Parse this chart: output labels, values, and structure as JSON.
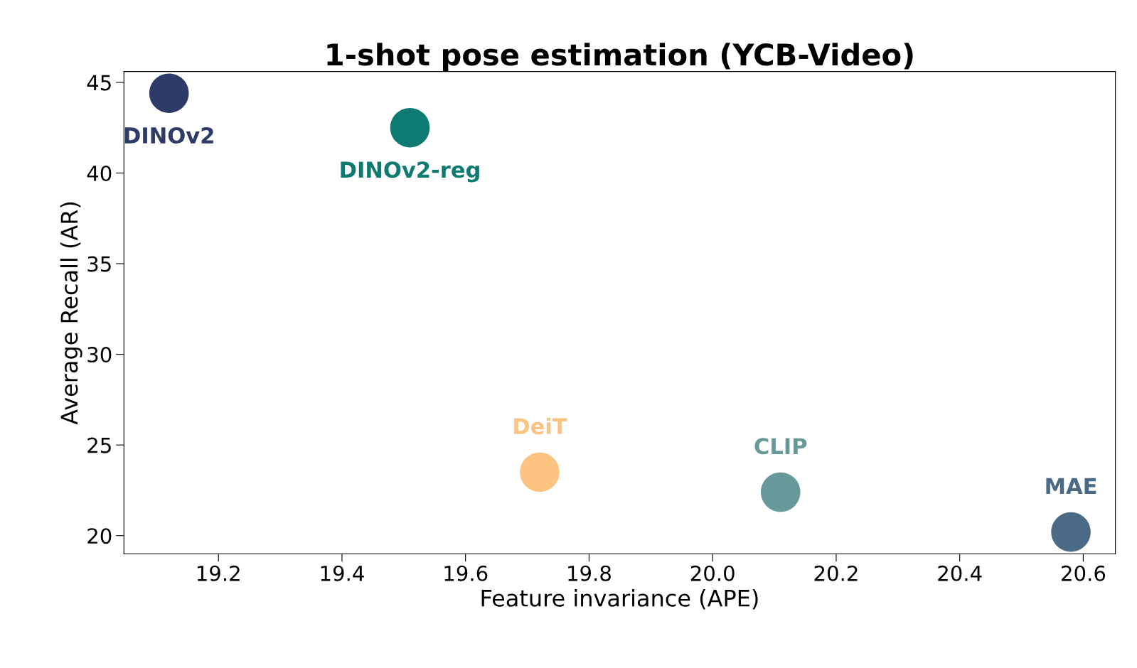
{
  "chart_data": {
    "type": "scatter",
    "title": "1-shot pose estimation (YCB-Video)",
    "xlabel": "Feature invariance (APE)",
    "ylabel": "Average Recall (AR)",
    "xlim": [
      19.047,
      20.652
    ],
    "ylim": [
      19.0,
      45.6
    ],
    "xticks": [
      19.2,
      19.4,
      19.6,
      19.8,
      {
        "value": 20.0,
        "label": "20.0"
      },
      20.2,
      20.4,
      20.6
    ],
    "yticks": [
      20,
      25,
      30,
      35,
      40,
      45
    ],
    "grid": false,
    "legend": false,
    "marker": "circle",
    "series": [
      {
        "name": "DINOv2",
        "color": "#2e3a68",
        "x": [
          19.12
        ],
        "values": [
          44.4
        ]
      },
      {
        "name": "DINOv2-reg",
        "color": "#0e7b72",
        "x": [
          19.51
        ],
        "values": [
          42.5
        ]
      },
      {
        "name": "DeiT",
        "color": "#fdc381",
        "x": [
          19.72
        ],
        "values": [
          23.5
        ]
      },
      {
        "name": "CLIP",
        "color": "#67999a",
        "x": [
          20.11
        ],
        "values": [
          22.4
        ]
      },
      {
        "name": "MAE",
        "color": "#4a6a85",
        "x": [
          20.58
        ],
        "values": [
          20.2
        ]
      }
    ]
  }
}
